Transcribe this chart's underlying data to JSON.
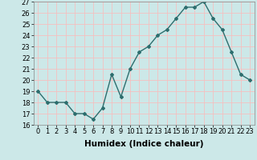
{
  "x": [
    0,
    1,
    2,
    3,
    4,
    5,
    6,
    7,
    8,
    9,
    10,
    11,
    12,
    13,
    14,
    15,
    16,
    17,
    18,
    19,
    20,
    21,
    22,
    23
  ],
  "y": [
    19,
    18,
    18,
    18,
    17,
    17,
    16.5,
    17.5,
    20.5,
    18.5,
    21,
    22.5,
    23,
    24,
    24.5,
    25.5,
    26.5,
    26.5,
    27,
    25.5,
    24.5,
    22.5,
    20.5,
    20
  ],
  "xlabel": "Humidex (Indice chaleur)",
  "ylim": [
    16,
    27
  ],
  "xlim": [
    -0.5,
    23.5
  ],
  "yticks": [
    16,
    17,
    18,
    19,
    20,
    21,
    22,
    23,
    24,
    25,
    26,
    27
  ],
  "xticks": [
    0,
    1,
    2,
    3,
    4,
    5,
    6,
    7,
    8,
    9,
    10,
    11,
    12,
    13,
    14,
    15,
    16,
    17,
    18,
    19,
    20,
    21,
    22,
    23
  ],
  "line_color": "#2d6e6e",
  "marker": "D",
  "marker_size": 2.0,
  "bg_color": "#cce8e8",
  "grid_color": "#f5c0c0",
  "xlabel_fontsize": 7.5,
  "tick_fontsize": 6.0,
  "line_width": 1.0
}
